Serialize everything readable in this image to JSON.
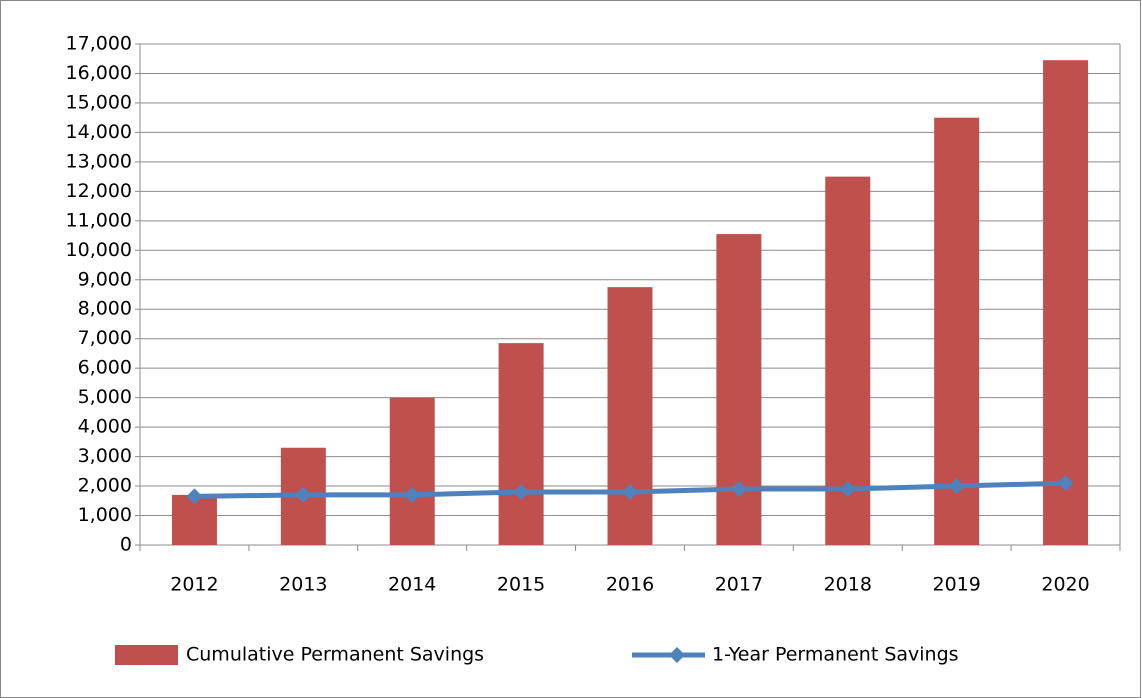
{
  "chart_data": {
    "type": "bar",
    "categories": [
      "2012",
      "2013",
      "2014",
      "2015",
      "2016",
      "2017",
      "2018",
      "2019",
      "2020"
    ],
    "series": [
      {
        "name": "Cumulative Permanent Savings",
        "type": "bar",
        "color": "#c0504d",
        "values": [
          1700,
          3300,
          5000,
          6850,
          8750,
          10550,
          12500,
          14500,
          16450
        ]
      },
      {
        "name": "1-Year Permanent Savings",
        "type": "line",
        "color": "#4f81bd",
        "values": [
          1650,
          1700,
          1700,
          1800,
          1800,
          1900,
          1900,
          2000,
          2100
        ]
      }
    ],
    "ylim": [
      0,
      17000
    ],
    "yticks": [
      0,
      {
        "value": 1000,
        "label": "1,000"
      },
      {
        "value": 2000,
        "label": "2,000"
      },
      {
        "value": 3000,
        "label": "3,000"
      },
      {
        "value": 4000,
        "label": "4,000"
      },
      {
        "value": 5000,
        "label": "5,000"
      },
      {
        "value": 6000,
        "label": "6,000"
      },
      {
        "value": 7000,
        "label": "7,000"
      },
      {
        "value": 8000,
        "label": "8,000"
      },
      {
        "value": 9000,
        "label": "9,000"
      },
      {
        "value": 10000,
        "label": "10,000"
      },
      {
        "value": 11000,
        "label": "11,000"
      },
      {
        "value": 12000,
        "label": "12,000"
      },
      {
        "value": 13000,
        "label": "13,000"
      },
      {
        "value": 14000,
        "label": "14,000"
      },
      {
        "value": 15000,
        "label": "15,000"
      },
      {
        "value": 16000,
        "label": "16,000"
      },
      {
        "value": 17000,
        "label": "17,000"
      }
    ],
    "grid": true,
    "legend": "bottom"
  }
}
